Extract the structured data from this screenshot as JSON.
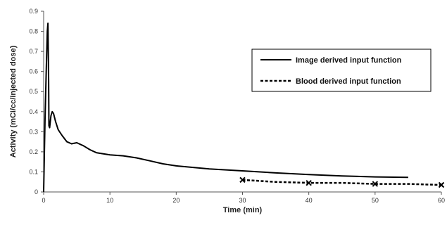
{
  "chart_data": {
    "type": "line",
    "xlabel": "Time (min)",
    "ylabel": "Activity (mCi/cc/injected dose)",
    "xlim": [
      0,
      60
    ],
    "ylim": [
      0,
      0.9
    ],
    "x_ticks": [
      0,
      10,
      20,
      30,
      40,
      50,
      60
    ],
    "y_ticks": [
      0,
      0.1,
      0.2,
      0.3,
      0.4,
      0.5,
      0.6,
      0.7,
      0.8,
      0.9
    ],
    "grid": false,
    "legend_position": "upper-right",
    "series": [
      {
        "name": "Image derived input function",
        "style": "solid",
        "x": [
          0,
          0.2,
          0.4,
          0.55,
          0.65,
          0.75,
          0.8,
          0.9,
          1.1,
          1.3,
          1.5,
          1.8,
          2.2,
          2.8,
          3.5,
          4.2,
          5,
          6,
          7,
          8,
          10,
          12,
          14,
          16,
          18,
          20,
          25,
          30,
          35,
          40,
          45,
          50,
          55
        ],
        "y": [
          0,
          0.35,
          0.62,
          0.8,
          0.84,
          0.55,
          0.33,
          0.32,
          0.38,
          0.4,
          0.39,
          0.35,
          0.31,
          0.28,
          0.25,
          0.24,
          0.245,
          0.23,
          0.21,
          0.195,
          0.185,
          0.18,
          0.17,
          0.155,
          0.14,
          0.13,
          0.115,
          0.105,
          0.095,
          0.087,
          0.08,
          0.075,
          0.073
        ]
      },
      {
        "name": "Blood derived input function",
        "style": "dashed",
        "marker": "x",
        "x": [
          30,
          35,
          40,
          45,
          50,
          55,
          60
        ],
        "y": [
          0.06,
          0.05,
          0.045,
          0.045,
          0.04,
          0.04,
          0.035
        ],
        "marker_x": [
          30,
          40,
          50,
          60
        ],
        "marker_y": [
          0.06,
          0.045,
          0.04,
          0.035
        ]
      }
    ]
  }
}
